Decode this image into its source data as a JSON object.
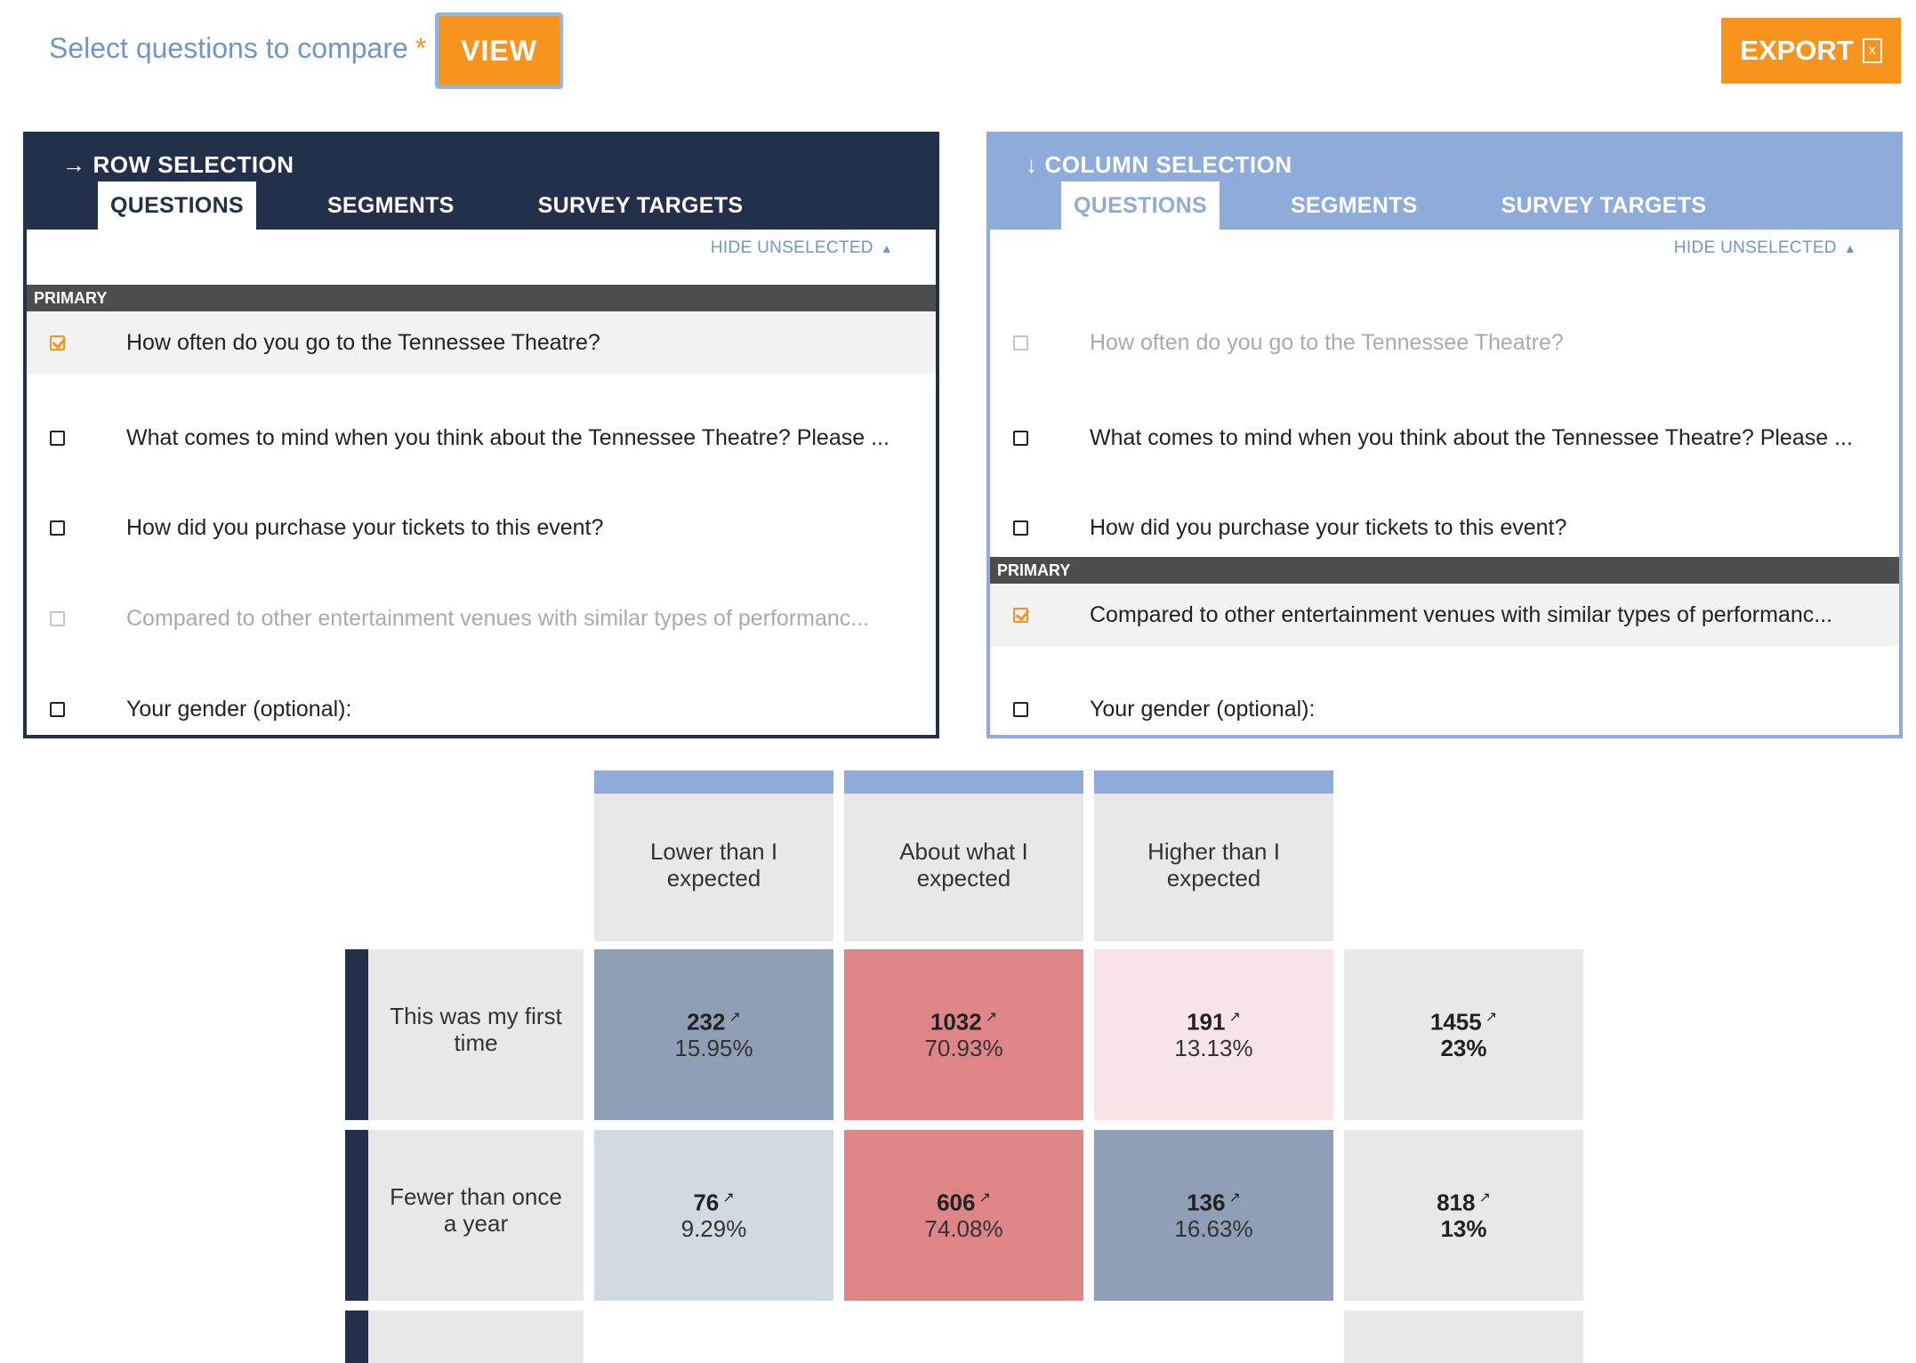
{
  "toolbar": {
    "select_label": "Select questions to compare",
    "required_mark": "*",
    "view_label": "VIEW",
    "export_label": "EXPORT",
    "export_icon": "excel-file-icon"
  },
  "row_panel": {
    "title": "ROW SELECTION",
    "arrow": "→",
    "tabs": [
      "QUESTIONS",
      "SEGMENTS",
      "SURVEY TARGETS"
    ],
    "active_tab": "QUESTIONS",
    "hide_label": "HIDE UNSELECTED",
    "primary_label": "PRIMARY",
    "questions": [
      {
        "text": "How often do you go to the Tennessee Theatre?",
        "checked": true
      },
      {
        "text": "What comes to mind when you think about the Tennessee Theatre? Please ...",
        "checked": false
      },
      {
        "text": "How did you purchase your tickets to this event?",
        "checked": false
      },
      {
        "text": "Compared to other entertainment venues with similar types of performanc...",
        "checked": false,
        "disabled": true
      },
      {
        "text": "Your gender (optional):",
        "checked": false
      }
    ]
  },
  "col_panel": {
    "title": "COLUMN SELECTION",
    "arrow": "↓",
    "tabs": [
      "QUESTIONS",
      "SEGMENTS",
      "SURVEY TARGETS"
    ],
    "active_tab": "QUESTIONS",
    "hide_label": "HIDE UNSELECTED",
    "primary_label": "PRIMARY",
    "questions": [
      {
        "text": "How often do you go to the Tennessee Theatre?",
        "checked": false,
        "disabled": true
      },
      {
        "text": "What comes to mind when you think about the Tennessee Theatre? Please ...",
        "checked": false
      },
      {
        "text": "How did you purchase your tickets to this event?",
        "checked": false
      },
      {
        "text": "Compared to other entertainment venues with similar types of performanc...",
        "checked": true
      },
      {
        "text": "Your gender (optional):",
        "checked": false
      }
    ]
  },
  "matrix": {
    "columns": [
      "Lower than I expected",
      "About what I expected",
      "Higher than I expected"
    ],
    "rows": [
      {
        "label": "This was my first time",
        "cells": [
          {
            "count": "232",
            "pct": "15.95%",
            "color": "#8f9fb6"
          },
          {
            "count": "1032",
            "pct": "70.93%",
            "color": "#df8588"
          },
          {
            "count": "191",
            "pct": "13.13%",
            "color": "#f6e4e6"
          }
        ],
        "total": {
          "count": "1455",
          "pct": "23%"
        }
      },
      {
        "label": "Fewer than once a year",
        "cells": [
          {
            "count": "76",
            "pct": "9.29%",
            "color": "#d1d9e3"
          },
          {
            "count": "606",
            "pct": "74.08%",
            "color": "#df8588"
          },
          {
            "count": "136",
            "pct": "16.63%",
            "color": "#8f9fb6"
          }
        ],
        "total": {
          "count": "818",
          "pct": "13%"
        }
      }
    ],
    "total_color": "#e8e8e8",
    "link_icon": "external-link-icon"
  }
}
